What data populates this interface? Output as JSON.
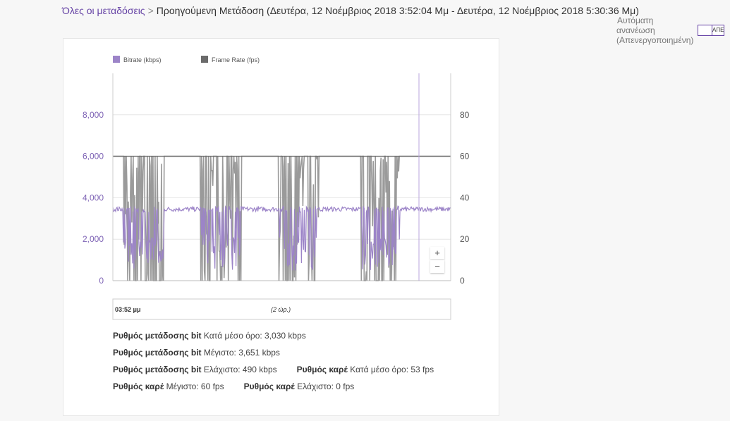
{
  "breadcrumb": {
    "root": "Όλες οι μεταδόσεις",
    "separator": ">",
    "current": "Προηγούμενη Μετάδοση (Δευτέρα, 12 Νοέμβριος 2018 3:52:04 Μμ - Δευτέρα, 12 Νοέμβριος 2018 5:30:36 Μμ)"
  },
  "auto_refresh": {
    "label_line1": "Αυτόματη",
    "label_line2": "ανανέωση",
    "label_line3": "(Απενεργοποιημένη)",
    "toggle_text": "ΑΠΕΝ"
  },
  "colors": {
    "accent": "#6441a4",
    "bitrate": "#9c84c8",
    "framerate": "#6b6b6b",
    "framerate_fill": "#999999"
  },
  "chart_data": {
    "type": "line",
    "series": [
      {
        "name": "Bitrate (kbps)",
        "axis": "left",
        "typical": 3450,
        "drops": [
          {
            "start": 0.03,
            "end": 0.15,
            "min": 490
          },
          {
            "start": 0.26,
            "end": 0.38,
            "min": 490
          },
          {
            "start": 0.49,
            "end": 0.61,
            "min": 490
          },
          {
            "start": 0.73,
            "end": 0.85,
            "min": 490
          }
        ]
      },
      {
        "name": "Frame Rate (fps)",
        "axis": "right",
        "typical": 60,
        "drops": [
          {
            "start": 0.03,
            "end": 0.15,
            "min": 0
          },
          {
            "start": 0.26,
            "end": 0.38,
            "min": 0
          },
          {
            "start": 0.49,
            "end": 0.61,
            "min": 0
          },
          {
            "start": 0.73,
            "end": 0.85,
            "min": 0
          }
        ]
      }
    ],
    "y_left": {
      "ticks": [
        "8,000",
        "6,000",
        "4,000",
        "2,000",
        "0"
      ],
      "values": [
        8000,
        6000,
        4000,
        2000,
        0
      ],
      "range": [
        0,
        10000
      ]
    },
    "y_right": {
      "ticks": [
        "80",
        "60",
        "40",
        "20",
        "0"
      ],
      "values": [
        80,
        60,
        40,
        20,
        0
      ],
      "range": [
        0,
        100
      ]
    },
    "navigator": {
      "start_label": "03:52 μμ",
      "duration_label": "(2 ώρ.)"
    },
    "zoom": {
      "plus": "+",
      "minus": "−"
    },
    "grid": true,
    "legend_position": "top-left"
  },
  "stats": {
    "bitrate_label": "Ρυθμός μετάδοσης bit",
    "framerate_label": "Ρυθμός καρέ",
    "bitrate_avg": "Κατά μέσο όρο: 3,030 kbps",
    "bitrate_max": "Μέγιστο: 3,651 kbps",
    "bitrate_min": "Ελάχιστο: 490 kbps",
    "framerate_avg": "Κατά μέσο όρο: 53 fps",
    "framerate_max": "Μέγιστο: 60 fps",
    "framerate_min": "Ελάχιστο: 0 fps"
  }
}
